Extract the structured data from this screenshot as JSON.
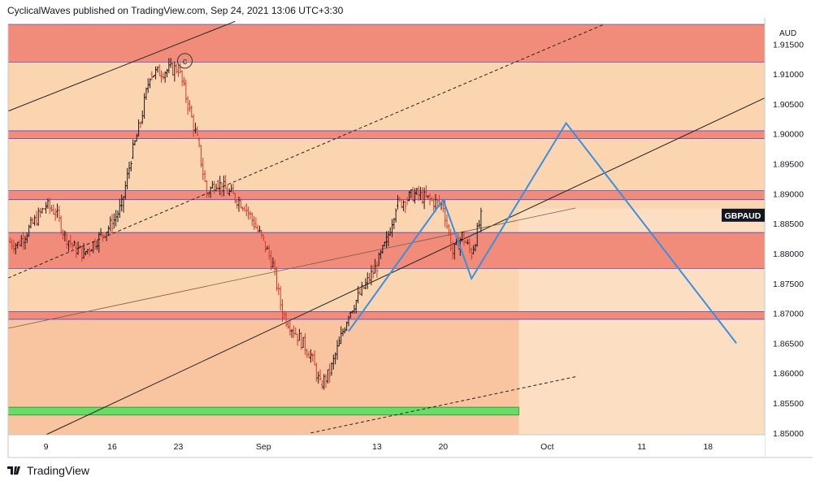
{
  "header": {
    "attribution": "CyclicalWaves published on TradingView.com, Sep 24, 2021 13:06 UTC+3:30"
  },
  "footer": {
    "brand": "TradingView",
    "logo_icon": "tradingview-logo-icon"
  },
  "colors": {
    "zone_strong": "#f28c7a",
    "zone_mid": "#f6a984",
    "zone_light": "#fbd5b0",
    "zone_pale": "#fde6cf",
    "green_zone": "#66dd66",
    "projection": "#3a8fe0",
    "bar_up": "#1a1a1a",
    "bar_down": "#d43a2a",
    "axis_text": "#131722"
  },
  "chart_data": {
    "type": "ohlc",
    "symbol": "GBPAUD",
    "currency_label": "AUD",
    "wave_label": "c",
    "y_ticks": [
      "1.85000",
      "1.85500",
      "1.86000",
      "1.86500",
      "1.87000",
      "1.87500",
      "1.88000",
      "1.88500",
      "1.89000",
      "1.89500",
      "1.90000",
      "1.90500",
      "1.91000",
      "1.91500"
    ],
    "ylim": [
      1.8497,
      1.9183
    ],
    "x_ticks": [
      "9",
      "16",
      "23",
      "Sep",
      "13",
      "20",
      "Oct",
      "11",
      "18"
    ],
    "x_tick_dates": [
      "2021-08-09",
      "2021-08-16",
      "2021-08-23",
      "2021-09-01",
      "2021-09-13",
      "2021-09-20",
      "2021-10-01",
      "2021-10-11",
      "2021-10-18"
    ],
    "last_price_label": "GBPAUD",
    "last_price": 1.8864,
    "price_path_daily": [
      [
        "2021-08-05",
        1.882
      ],
      [
        "2021-08-06",
        1.8815
      ],
      [
        "2021-08-09",
        1.888
      ],
      [
        "2021-08-10",
        1.887
      ],
      [
        "2021-08-11",
        1.883
      ],
      [
        "2021-08-12",
        1.881
      ],
      [
        "2021-08-13",
        1.88
      ],
      [
        "2021-08-16",
        1.885
      ],
      [
        "2021-08-17",
        1.888
      ],
      [
        "2021-08-18",
        1.896
      ],
      [
        "2021-08-19",
        1.902
      ],
      [
        "2021-08-20",
        1.91
      ],
      [
        "2021-08-23",
        1.911
      ],
      [
        "2021-08-24",
        1.905
      ],
      [
        "2021-08-25",
        1.899
      ],
      [
        "2021-08-26",
        1.89
      ],
      [
        "2021-08-27",
        1.892
      ],
      [
        "2021-08-30",
        1.888
      ],
      [
        "2021-08-31",
        1.885
      ],
      [
        "2021-09-01",
        1.882
      ],
      [
        "2021-09-02",
        1.878
      ],
      [
        "2021-09-03",
        1.87
      ],
      [
        "2021-09-06",
        1.863
      ],
      [
        "2021-09-07",
        1.858
      ],
      [
        "2021-09-08",
        1.86
      ],
      [
        "2021-09-09",
        1.865
      ],
      [
        "2021-09-10",
        1.87
      ],
      [
        "2021-09-13",
        1.878
      ],
      [
        "2021-09-14",
        1.882
      ],
      [
        "2021-09-15",
        1.888
      ],
      [
        "2021-09-16",
        1.889
      ],
      [
        "2021-09-17",
        1.89
      ],
      [
        "2021-09-20",
        1.888
      ],
      [
        "2021-09-21",
        1.88
      ],
      [
        "2021-09-22",
        1.883
      ],
      [
        "2021-09-23",
        1.88
      ],
      [
        "2021-09-24",
        1.886
      ]
    ],
    "horizontal_zones": [
      {
        "top": 1.9183,
        "bottom": 1.912,
        "color": "strong"
      },
      {
        "top": 1.912,
        "bottom": 1.9005,
        "color": "light"
      },
      {
        "top": 1.9005,
        "bottom": 1.8992,
        "color": "strong"
      },
      {
        "top": 1.8905,
        "bottom": 1.889,
        "color": "strong"
      },
      {
        "top": 1.8835,
        "bottom": 1.8775,
        "color": "strong"
      },
      {
        "top": 1.8703,
        "bottom": 1.869,
        "color": "strong"
      }
    ],
    "green_zone": {
      "top": 1.8543,
      "bottom": 1.853,
      "from": "2021-08-05",
      "to": "2021-09-28"
    },
    "projection_path": [
      [
        "2021-09-10",
        1.867
      ],
      [
        "2021-09-20",
        1.889
      ],
      [
        "2021-09-23",
        1.8758
      ],
      [
        "2021-10-03",
        1.9018
      ],
      [
        "2021-10-21",
        1.865
      ]
    ]
  }
}
